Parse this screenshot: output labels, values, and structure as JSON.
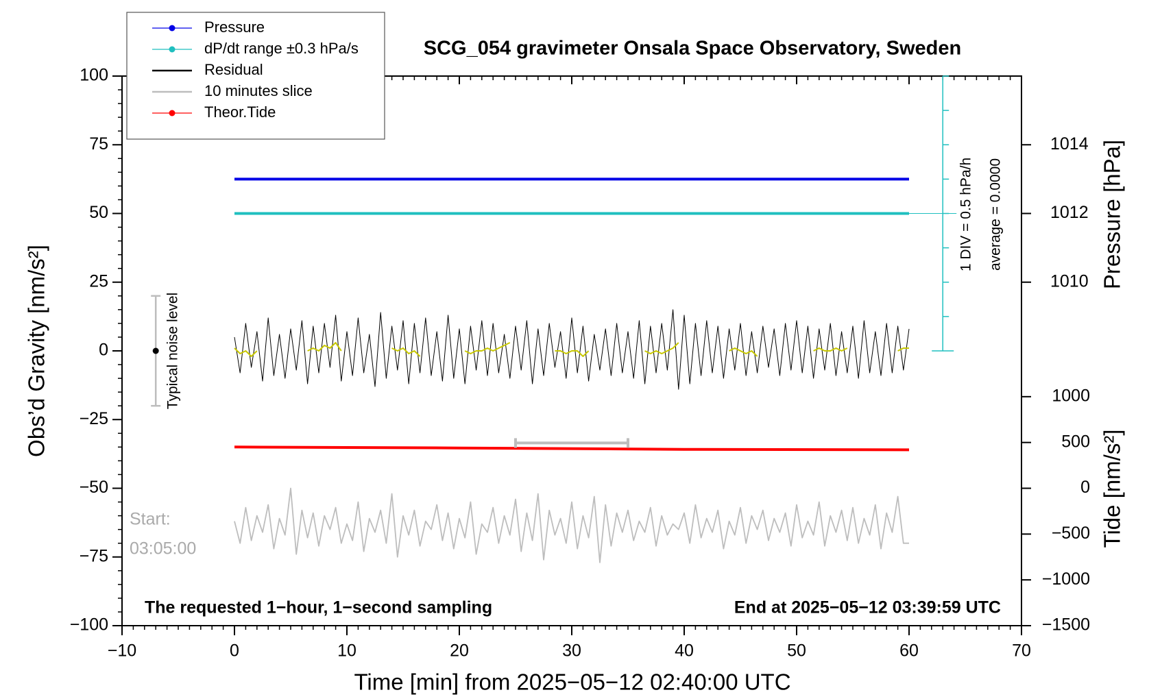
{
  "chart_data": {
    "type": "line",
    "title": "SCG_054 gravimeter Onsala Space Observatory, Sweden",
    "xlabel": "Time [min] from 2025−05−12 02:40:00 UTC",
    "ylabel": "Obs’d Gravity [nm/s²]",
    "y2label": "Pressure [hPa]",
    "y3label": "Tide [nm/s²]",
    "xlim": [
      -10,
      70
    ],
    "xticks": [
      {
        "value": -10,
        "label": "−10"
      },
      0,
      10,
      20,
      30,
      40,
      50,
      60,
      70
    ],
    "xminor_step": 1,
    "ylim": [
      -100,
      100
    ],
    "yticks": [
      {
        "value": -100,
        "label": "−100"
      },
      {
        "value": -75,
        "label": "−75"
      },
      {
        "value": -50,
        "label": "−50"
      },
      {
        "value": -25,
        "label": "−25"
      },
      0,
      25,
      50,
      75,
      100
    ],
    "yminor_step": 5,
    "y2lim": [
      1000,
      1016
    ],
    "y2ticks": [
      1010,
      1012,
      1014
    ],
    "y3lim": [
      -1500,
      4500
    ],
    "y3ticks": [
      {
        "value": -1500,
        "label": "−1500"
      },
      {
        "value": -1000,
        "label": "−1000"
      },
      {
        "value": -500,
        "label": "−500"
      },
      0,
      500,
      1000
    ],
    "dplim": [
      -6,
      2
    ],
    "dpticks": [
      -2,
      -1.5,
      -1,
      -0.5,
      0,
      0.5,
      1,
      1.5,
      2
    ],
    "dp_axis_x": 63,
    "dp_notes": [
      "1 DIV = 0.5 hPa/h",
      "average = 0.0000"
    ],
    "legend": "upper left",
    "x": [
      0,
      0.5,
      1,
      1.5,
      2,
      2.5,
      3,
      3.5,
      4,
      4.5,
      5,
      5.5,
      6,
      6.5,
      7,
      7.5,
      8,
      8.5,
      9,
      9.5,
      10,
      10.5,
      11,
      11.5,
      12,
      12.5,
      13,
      13.5,
      14,
      14.5,
      15,
      15.5,
      16,
      16.5,
      17,
      17.5,
      18,
      18.5,
      19,
      19.5,
      20,
      20.5,
      21,
      21.5,
      22,
      22.5,
      23,
      23.5,
      24,
      24.5,
      25,
      25.5,
      26,
      26.5,
      27,
      27.5,
      28,
      28.5,
      29,
      29.5,
      30,
      30.5,
      31,
      31.5,
      32,
      32.5,
      33,
      33.5,
      34,
      34.5,
      35,
      35.5,
      36,
      36.5,
      37,
      37.5,
      38,
      38.5,
      39,
      39.5,
      40,
      40.5,
      41,
      41.5,
      42,
      42.5,
      43,
      43.5,
      44,
      44.5,
      45,
      45.5,
      46,
      46.5,
      47,
      47.5,
      48,
      48.5,
      49,
      49.5,
      50,
      50.5,
      51,
      51.5,
      52,
      52.5,
      53,
      53.5,
      54,
      54.5,
      55,
      55.5,
      56,
      56.5,
      57,
      57.5,
      58,
      58.5,
      59,
      59.5,
      60
    ],
    "series": [
      {
        "name": "Pressure",
        "color": "#0000e6",
        "marker": "o",
        "axis": "y2",
        "x": [
          0,
          60
        ],
        "values": [
          1013,
          1013
        ]
      },
      {
        "name": "dP/dt range ±0.3 hPa/s",
        "color": "#1fbfbf",
        "marker": "o",
        "axis": "dp",
        "x": [
          0,
          60
        ],
        "values": [
          0,
          0
        ]
      },
      {
        "name": "Residual",
        "color": "#000000",
        "values": [
          5,
          -8,
          10,
          -6,
          7,
          -11,
          12,
          -9,
          6,
          -10,
          8,
          -7,
          11,
          -12,
          9,
          -8,
          10,
          -6,
          13,
          -11,
          7,
          -9,
          12,
          -8,
          6,
          -13,
          14,
          -10,
          9,
          -7,
          11,
          -12,
          10,
          -8,
          12,
          -9,
          7,
          -11,
          13,
          -10,
          8,
          -12,
          9,
          -7,
          11,
          -9,
          10,
          -8,
          6,
          -10,
          9,
          -7,
          11,
          -12,
          8,
          -9,
          10,
          -6,
          7,
          -10,
          12,
          -8,
          9,
          -11,
          6,
          -7,
          8,
          -9,
          10,
          -8,
          7,
          -10,
          11,
          -12,
          9,
          -8,
          10,
          -7,
          15,
          -14,
          13,
          -12,
          10,
          -9,
          11,
          -8,
          9,
          -10,
          8,
          -7,
          10,
          -9,
          7,
          -8,
          9,
          -6,
          8,
          -9,
          10,
          -7,
          11,
          -8,
          9,
          -10,
          8,
          -7,
          10,
          -9,
          7,
          -8,
          9,
          -10,
          11,
          -8,
          7,
          -9,
          10,
          -8,
          9,
          -7,
          8
        ]
      },
      {
        "name": "10 minutes slice",
        "color": "#bdbdbd",
        "values": [
          -62,
          -70,
          -57,
          -69,
          -60,
          -66,
          -56,
          -72,
          -61,
          -67,
          -50,
          -74,
          -58,
          -68,
          -59,
          -71,
          -60,
          -65,
          -57,
          -70,
          -63,
          -69,
          -55,
          -73,
          -61,
          -66,
          -58,
          -70,
          -52,
          -75,
          -60,
          -67,
          -58,
          -71,
          -62,
          -65,
          -56,
          -69,
          -59,
          -72,
          -61,
          -68,
          -55,
          -74,
          -63,
          -66,
          -57,
          -70,
          -60,
          -67,
          -54,
          -73,
          -59,
          -69,
          -52,
          -76,
          -58,
          -67,
          -61,
          -70,
          -55,
          -72,
          -60,
          -68,
          -53,
          -77,
          -56,
          -71,
          -59,
          -66,
          -58,
          -69,
          -62,
          -66,
          -57,
          -71,
          -60,
          -67,
          -63,
          -65,
          -59,
          -70,
          -56,
          -68,
          -61,
          -66,
          -58,
          -72,
          -62,
          -67,
          -57,
          -70,
          -60,
          -65,
          -58,
          -69,
          -61,
          -66,
          -59,
          -71,
          -56,
          -68,
          -62,
          -67,
          -55,
          -71,
          -60,
          -66,
          -58,
          -69,
          -57,
          -70,
          -61,
          -67,
          -56,
          -72,
          -59,
          -66,
          -53,
          -70,
          -70
        ]
      },
      {
        "name": "Theor.Tide",
        "color": "#ff0000",
        "marker": "o",
        "axis": "y3",
        "x": [
          0,
          20,
          40,
          60
        ],
        "values": [
          450,
          440,
          425,
          420
        ]
      },
      {
        "color": "#c8c800",
        "values": [
          1,
          -1,
          0,
          -2,
          0,
          null,
          null,
          null,
          null,
          null,
          null,
          null,
          null,
          0,
          1,
          0,
          2,
          1,
          3,
          0,
          null,
          null,
          null,
          null,
          null,
          null,
          null,
          null,
          1,
          0,
          1,
          -1,
          0,
          -2,
          null,
          null,
          null,
          null,
          null,
          null,
          null,
          0,
          -1,
          0,
          0,
          1,
          0,
          1,
          2,
          3,
          null,
          null,
          null,
          null,
          null,
          null,
          null,
          0,
          0,
          -1,
          0,
          0,
          -2,
          0,
          null,
          null,
          null,
          null,
          null,
          null,
          null,
          null,
          null,
          0,
          -1,
          0,
          -1,
          0,
          1,
          3,
          null,
          null,
          null,
          null,
          null,
          null,
          null,
          null,
          0,
          1,
          0,
          -1,
          0,
          -2,
          null,
          null,
          null,
          null,
          null,
          null,
          null,
          null,
          null,
          0,
          1,
          0,
          0,
          1,
          0,
          1,
          null,
          null,
          null,
          null,
          null,
          null,
          null,
          null,
          0,
          1,
          1
        ]
      }
    ],
    "noise": {
      "label": "Typical noise level",
      "x": -7,
      "center": 0,
      "low": -20,
      "high": 20
    },
    "slice": {
      "x": [
        25,
        35
      ],
      "y": -33.5
    },
    "start_label": [
      "Start:",
      "03:05:00"
    ],
    "footer_left": "The requested 1−hour, 1−second sampling",
    "footer_right": "End at 2025−05−12 03:39:59 UTC"
  }
}
